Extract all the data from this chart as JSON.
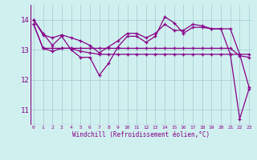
{
  "xlabel": "Windchill (Refroidissement éolien,°C)",
  "bg_color": "#d0f0f0",
  "line_color": "#880088",
  "grid_color": "#a0cccc",
  "xticks": [
    0,
    1,
    2,
    3,
    4,
    5,
    6,
    7,
    8,
    9,
    10,
    11,
    12,
    13,
    14,
    15,
    16,
    17,
    18,
    19,
    20,
    21,
    22,
    23
  ],
  "yticks": [
    11,
    12,
    13,
    14
  ],
  "ylim": [
    10.5,
    14.5
  ],
  "xlim": [
    -0.3,
    23.3
  ],
  "series": [
    [
      14.0,
      13.55,
      13.15,
      13.45,
      13.0,
      12.75,
      12.75,
      12.15,
      12.55,
      13.1,
      13.45,
      13.45,
      13.25,
      13.45,
      14.1,
      13.9,
      13.55,
      13.75,
      13.75,
      13.7,
      13.7,
      12.85,
      10.7,
      11.7
    ],
    [
      13.85,
      13.05,
      12.95,
      13.05,
      13.05,
      12.95,
      12.9,
      12.85,
      12.85,
      12.85,
      12.85,
      12.85,
      12.85,
      12.85,
      12.85,
      12.85,
      12.85,
      12.85,
      12.85,
      12.85,
      12.85,
      12.85,
      12.85,
      12.85
    ],
    [
      13.85,
      13.05,
      13.05,
      13.05,
      13.05,
      13.05,
      13.05,
      13.05,
      13.05,
      13.05,
      13.05,
      13.05,
      13.05,
      13.05,
      13.05,
      13.05,
      13.05,
      13.05,
      13.05,
      13.05,
      13.05,
      13.05,
      12.8,
      12.75
    ],
    [
      14.0,
      13.5,
      13.4,
      13.5,
      13.4,
      13.3,
      13.15,
      12.9,
      13.1,
      13.3,
      13.55,
      13.55,
      13.4,
      13.55,
      13.85,
      13.65,
      13.65,
      13.85,
      13.8,
      13.7,
      13.7,
      13.7,
      12.85,
      11.75
    ]
  ]
}
